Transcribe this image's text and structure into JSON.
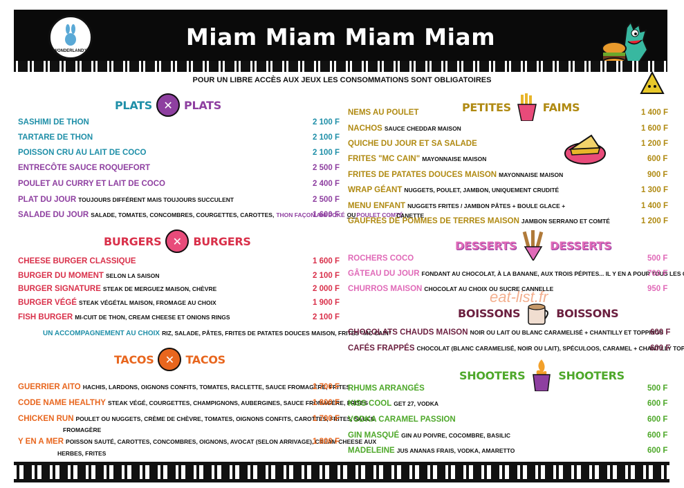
{
  "header": {
    "title": "Miam Miam Miam Miam",
    "logo_text": "WONDERLAND'S"
  },
  "notice": "POUR UN LIBRE ACCÈS AUX JEUX LES CONSOMMATIONS SONT OBLIGATOIRES",
  "watermark": "eat-list.fr",
  "colors": {
    "plats": "#1f8fa8",
    "plats2": "#8e3fa0",
    "burgers": "#d9304a",
    "tacos": "#e8661e",
    "faims": "#b08a12",
    "desserts": "#e06ab8",
    "boissons": "#6b1f3f",
    "shooters": "#4ea82a"
  },
  "sections": {
    "plats": {
      "left": "PLATS",
      "right": "PLATS"
    },
    "burgers": {
      "left": "BURGERS",
      "right": "BURGERS"
    },
    "tacos": {
      "left": "TACOS",
      "right": "TACOS"
    },
    "faims": {
      "left": "PETITES",
      "right": "FAIMS"
    },
    "desserts": {
      "left": "DESSERTS",
      "right": "DESSERTS"
    },
    "boissons": {
      "left": "BOISSONS",
      "right": "BOISSONS"
    },
    "shooters": {
      "left": "SHOOTERS",
      "right": "SHOOTERS"
    }
  },
  "plats": [
    {
      "name": "SASHIMI DE THON",
      "desc": "",
      "price": "2 100 F"
    },
    {
      "name": "TARTARE DE THON",
      "desc": "",
      "price": "2 100 F"
    },
    {
      "name": "POISSON CRU AU LAIT DE COCO",
      "desc": "",
      "price": "2 100 F"
    },
    {
      "name": "ENTRECÔTE SAUCE ROQUEFORT",
      "desc": "",
      "price": "2 500 F"
    },
    {
      "name": "POULET AU CURRY ET LAIT DE COCO",
      "desc": "",
      "price": "2 400 F"
    },
    {
      "name": "PLAT DU JOUR",
      "desc": "TOUJOURS DIFFÉRENT MAIS TOUJOURS SUCCULENT",
      "price": "2 500 F"
    },
    {
      "name": "SALADE DU JOUR",
      "desc": "SALADE, TOMATES, CONCOMBRES, COURGETTES, CAROTTES,",
      "desc2": "THON FAÇON AHI POKÉ",
      "desc3": "OU",
      "desc4": "POULET COMTÉ",
      "price": "1 600 F"
    }
  ],
  "burgers": [
    {
      "name": "CHEESE BURGER CLASSIQUE",
      "desc": "",
      "price": "1 600 F"
    },
    {
      "name": "BURGER DU MOMENT",
      "desc": "SELON LA SAISON",
      "price": "2 100 F"
    },
    {
      "name": "BURGER SIGNATURE",
      "desc": "STEAK DE MERGUEZ MAISON, CHÈVRE",
      "price": "2 000 F"
    },
    {
      "name": "BURGER VÉGÉ",
      "desc": "STEAK VÉGÉTAL MAISON, FROMAGE AU CHOIX",
      "price": "1 900 F"
    },
    {
      "name": "FISH BURGER",
      "desc": "MI-CUIT DE THON, CREAM CHEESE ET ONIONS RINGS",
      "price": "2 100 F"
    }
  ],
  "accompagnement": {
    "label": "UN ACCOMPAGNEMENT AU CHOIX",
    "desc": "RIZ, SALADE, PÂTES, FRITES DE PATATES DOUCES MAISON, FRITES \"MC CAIN\""
  },
  "tacos": [
    {
      "name": "GUERRIER AITO",
      "desc": "HACHIS, LARDONS, OIGNONS CONFITS, TOMATES, RACLETTE, SAUCE FROMAGÈRE, FRITES",
      "price": "1 700 F"
    },
    {
      "name": "CODE NAME HEALTHY",
      "desc": "STEAK VÉGÉ, COURGETTES, CHAMPIGNONS, AUBERGINES, SAUCE FROMAGÈRE, FRITES",
      "price": "1 800 F"
    },
    {
      "name": "CHICKEN RUN",
      "desc": "POULET OU NUGGETS, CRÈME DE CHÈVRE, TOMATES, OIGNONS CONFITS, CAROTTES, FRITES, SAUCE",
      "desc2": "FROMAGÈRE",
      "price": "1 700 F"
    },
    {
      "name": "Y EN A MER",
      "desc": "POISSON SAUTÉ, CAROTTES, CONCOMBRES, OIGNONS, AVOCAT (SELON ARRIVAGE), CREAM CHEESE AUX",
      "desc2": "HERBES, FRITES",
      "price": "1 800 F"
    }
  ],
  "faims": [
    {
      "name": "NEMS AU POULET",
      "desc": "",
      "price": "1 400 F"
    },
    {
      "name": "NACHOS",
      "desc": "SAUCE CHEDDAR MAISON",
      "price": "1 600 F"
    },
    {
      "name": "QUICHE DU JOUR ET SA SALADE",
      "desc": "",
      "price": "1 200 F"
    },
    {
      "name": "FRITES \"MC CAIN\"",
      "desc": "MAYONNAISE MAISON",
      "price": "600 F"
    },
    {
      "name": "FRITES DE PATATES DOUCES MAISON",
      "desc": "MAYONNAISE MAISON",
      "price": "900 F"
    },
    {
      "name": "WRAP GÉANT",
      "desc": "NUGGETS, POULET, JAMBON, UNIQUEMENT CRUDITÉ",
      "price": "1 300 F"
    },
    {
      "name": "MENU ENFANT",
      "desc": "NUGGETS FRITES / JAMBON PÂTES + BOULE GLACE +",
      "desc2": "CANETTE",
      "price": "1 400 F"
    },
    {
      "name": "GAUFRES DE POMMES DE TERRES MAISON",
      "desc": "JAMBON SERRANO ET COMTÉ",
      "price": "1 200 F"
    }
  ],
  "desserts": [
    {
      "name": "ROCHERS COCO",
      "desc": "",
      "price": "500 F"
    },
    {
      "name": "GÂTEAU DU JOUR",
      "desc": "FONDANT AU CHOCOLAT, À LA BANANE, AUX TROIS PÉPITES... IL Y EN A POUR TOUS LES GOÛTS !",
      "price": "700 F"
    },
    {
      "name": "CHURROS MAISON",
      "desc": "CHOCOLAT AU CHOIX OU SUCRE CANNELLE",
      "price": "950 F"
    }
  ],
  "boissons": [
    {
      "name": "CHOCOLATS CHAUDS MAISON",
      "desc": "NOIR OU LAIT OU BLANC CARAMELISÉ + CHANTILLY ET TOPPINGS",
      "price": "600 F"
    },
    {
      "name": "CAFÉS FRAPPÉS",
      "desc": "CHOCOLAT (BLANC CARAMELISÉ, NOIR OU LAIT), SPÉCULOOS, CARAMEL + CHANTILLY TOPPINGS",
      "price": "600 F"
    }
  ],
  "shooters": [
    {
      "name": "RHUMS ARRANGÉS",
      "desc": "",
      "price": "500 F"
    },
    {
      "name": "KISS COOL",
      "desc": "GET 27, VODKA",
      "price": "600 F"
    },
    {
      "name": "VODKA CARAMEL PASSION",
      "desc": "",
      "price": "600 F"
    },
    {
      "name": "GIN MASQUÉ",
      "desc": "GIN AU POIVRE, COCOMBRE, BASILIC",
      "price": "600 F"
    },
    {
      "name": "MADELEINE",
      "desc": "JUS ANANAS FRAIS, VODKA, AMARETTO",
      "price": "600 F"
    }
  ]
}
